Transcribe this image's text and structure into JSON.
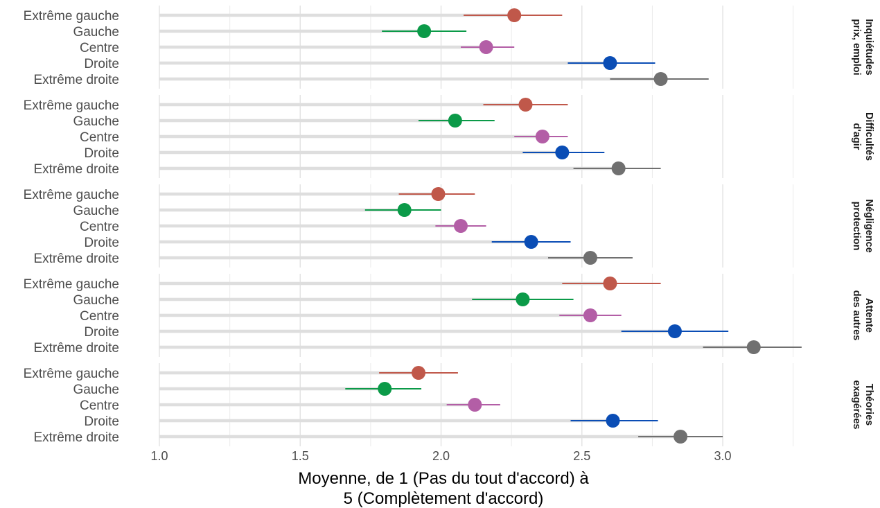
{
  "chart_data": {
    "type": "dot-errorbar",
    "xlabel_lines": [
      "Moyenne, de 1 (Pas du tout d'accord) à",
      "5 (Complètement d'accord)"
    ],
    "xlim": [
      1.0,
      3.3
    ],
    "xticks": [
      1.0,
      1.5,
      2.0,
      2.5,
      3.0
    ],
    "xtick_labels": [
      "1.0",
      "1.5",
      "2.0",
      "2.5",
      "3.0"
    ],
    "categories": [
      "Extrême gauche",
      "Gauche",
      "Centre",
      "Droite",
      "Extrême droite"
    ],
    "colors": [
      "#c0584a",
      "#0b9a48",
      "#b35ea6",
      "#0a4db5",
      "#707070"
    ],
    "grid": true,
    "panels": [
      {
        "label_lines": [
          "Inquiétudes",
          "prix, emploi"
        ],
        "points": [
          {
            "mean": 2.26,
            "low": 2.08,
            "high": 2.43
          },
          {
            "mean": 1.94,
            "low": 1.79,
            "high": 2.09
          },
          {
            "mean": 2.16,
            "low": 2.07,
            "high": 2.26
          },
          {
            "mean": 2.6,
            "low": 2.45,
            "high": 2.76
          },
          {
            "mean": 2.78,
            "low": 2.6,
            "high": 2.95
          }
        ]
      },
      {
        "label_lines": [
          "Difficultés",
          "d'agir"
        ],
        "points": [
          {
            "mean": 2.3,
            "low": 2.15,
            "high": 2.45
          },
          {
            "mean": 2.05,
            "low": 1.92,
            "high": 2.19
          },
          {
            "mean": 2.36,
            "low": 2.26,
            "high": 2.45
          },
          {
            "mean": 2.43,
            "low": 2.29,
            "high": 2.58
          },
          {
            "mean": 2.63,
            "low": 2.47,
            "high": 2.78
          }
        ]
      },
      {
        "label_lines": [
          "Négligence",
          "protection"
        ],
        "points": [
          {
            "mean": 1.99,
            "low": 1.85,
            "high": 2.12
          },
          {
            "mean": 1.87,
            "low": 1.73,
            "high": 2.0
          },
          {
            "mean": 2.07,
            "low": 1.98,
            "high": 2.16
          },
          {
            "mean": 2.32,
            "low": 2.18,
            "high": 2.46
          },
          {
            "mean": 2.53,
            "low": 2.38,
            "high": 2.68
          }
        ]
      },
      {
        "label_lines": [
          "Attente",
          "des autres"
        ],
        "points": [
          {
            "mean": 2.6,
            "low": 2.43,
            "high": 2.78
          },
          {
            "mean": 2.29,
            "low": 2.11,
            "high": 2.47
          },
          {
            "mean": 2.53,
            "low": 2.42,
            "high": 2.64
          },
          {
            "mean": 2.83,
            "low": 2.64,
            "high": 3.02
          },
          {
            "mean": 3.11,
            "low": 2.93,
            "high": 3.28
          }
        ]
      },
      {
        "label_lines": [
          "Théories",
          "exagérées"
        ],
        "points": [
          {
            "mean": 1.92,
            "low": 1.78,
            "high": 2.06
          },
          {
            "mean": 1.8,
            "low": 1.66,
            "high": 1.93
          },
          {
            "mean": 2.12,
            "low": 2.02,
            "high": 2.21
          },
          {
            "mean": 2.61,
            "low": 2.46,
            "high": 2.77
          },
          {
            "mean": 2.85,
            "low": 2.7,
            "high": 3.0
          }
        ]
      }
    ]
  }
}
